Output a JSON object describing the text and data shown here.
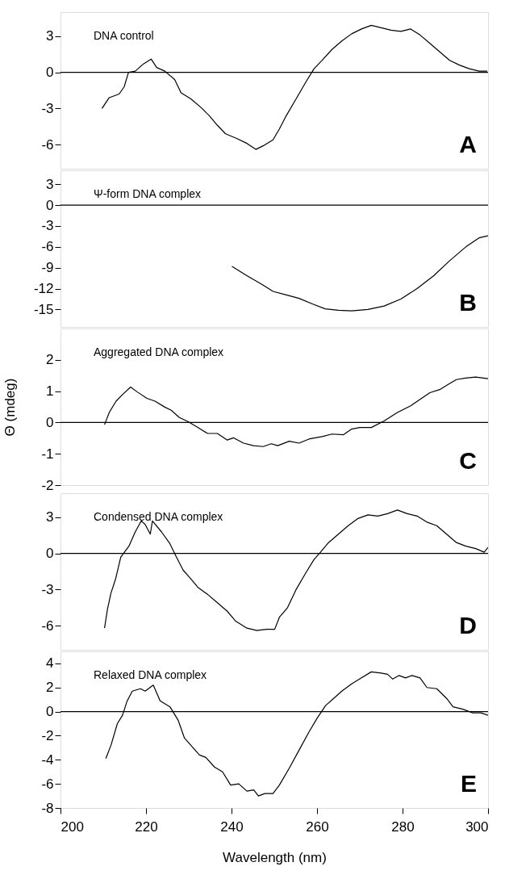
{
  "chart_data": [
    {
      "type": "line",
      "x": [
        209.7,
        211.4,
        213.7,
        214.9,
        215.9,
        217.5,
        219.4,
        221.2,
        222.5,
        224.4,
        226.7,
        228.2,
        230.5,
        232.8,
        234.8,
        236.7,
        238.6,
        241.3,
        243.6,
        245.7,
        247.4,
        249.7,
        251.2,
        252.8,
        255.1,
        257.4,
        259.3,
        261.2,
        263.5,
        265.8,
        268.1,
        270.4,
        272.7,
        275.0,
        277.3,
        279.6,
        281.9,
        284.1,
        286.4,
        288.7,
        291.0,
        293.3,
        295.6,
        297.9,
        299.8
      ],
      "series": [
        {
          "color": "#000000",
          "values": [
            -3.0,
            -2.1,
            -1.8,
            -1.2,
            0.0,
            0.1,
            0.7,
            1.1,
            0.4,
            0.1,
            -0.6,
            -1.7,
            -2.2,
            -2.9,
            -3.6,
            -4.4,
            -5.1,
            -5.5,
            -5.9,
            -6.4,
            -6.1,
            -5.6,
            -4.7,
            -3.6,
            -2.2,
            -0.8,
            0.3,
            1.0,
            1.9,
            2.6,
            3.2,
            3.6,
            3.9,
            3.7,
            3.5,
            3.4,
            3.6,
            3.1,
            2.4,
            1.7,
            1.0,
            0.6,
            0.3,
            0.1,
            0.1
          ]
        }
      ],
      "xlim": [
        200,
        300
      ],
      "xticks": [
        200,
        220,
        240,
        260,
        280,
        300
      ],
      "ylim": [
        -8,
        5
      ],
      "yticks": [
        3,
        0,
        -3,
        -6
      ],
      "ref_lines": [
        {
          "axis": "y",
          "value": 0
        }
      ],
      "annotations": [
        "DNA control",
        "A"
      ],
      "tick_labels": "y"
    },
    {
      "type": "line",
      "x": [
        240.1,
        243.5,
        247.4,
        249.7,
        252.8,
        255.8,
        258.9,
        261.9,
        265.0,
        268.1,
        271.9,
        275.7,
        279.6,
        283.4,
        287.2,
        291.0,
        294.8,
        297.9,
        300.0
      ],
      "series": [
        {
          "color": "#000000",
          "values": [
            -8.8,
            -10.1,
            -11.5,
            -12.4,
            -12.9,
            -13.4,
            -14.2,
            -14.9,
            -15.1,
            -15.2,
            -15.0,
            -14.5,
            -13.5,
            -12.0,
            -10.2,
            -8.0,
            -6.0,
            -4.7,
            -4.4
          ]
        }
      ],
      "xlim": [
        200,
        300
      ],
      "xticks": [
        200,
        220,
        240,
        260,
        280,
        300
      ],
      "ylim": [
        -17.5,
        5
      ],
      "yticks": [
        3,
        0,
        -3,
        -6,
        -9,
        -12,
        -15
      ],
      "ref_lines": [
        {
          "axis": "y",
          "value": 0
        }
      ],
      "annotations": [
        "Ψ-form DNA complex",
        "B"
      ],
      "tick_labels": "y"
    },
    {
      "type": "line",
      "x": [
        210.3,
        211.4,
        213.0,
        214.5,
        216.4,
        217.9,
        220.2,
        222.1,
        224.4,
        225.9,
        227.8,
        229.8,
        232.1,
        234.4,
        236.7,
        239.0,
        240.5,
        242.8,
        245.1,
        247.4,
        249.3,
        250.8,
        253.5,
        255.8,
        258.1,
        261.2,
        263.5,
        266.2,
        268.1,
        270.0,
        272.7,
        275.7,
        278.8,
        281.9,
        284.1,
        286.4,
        288.7,
        290.6,
        292.6,
        294.8,
        297.1,
        300.0
      ],
      "series": [
        {
          "color": "#000000",
          "values": [
            -0.07,
            0.32,
            0.68,
            0.89,
            1.13,
            0.98,
            0.77,
            0.68,
            0.49,
            0.39,
            0.16,
            0.03,
            -0.16,
            -0.35,
            -0.35,
            -0.56,
            -0.49,
            -0.66,
            -0.74,
            -0.77,
            -0.68,
            -0.74,
            -0.6,
            -0.66,
            -0.53,
            -0.45,
            -0.37,
            -0.39,
            -0.21,
            -0.16,
            -0.16,
            0.05,
            0.32,
            0.53,
            0.74,
            0.95,
            1.05,
            1.21,
            1.37,
            1.42,
            1.45,
            1.4
          ]
        }
      ],
      "xlim": [
        200,
        300
      ],
      "xticks": [
        200,
        220,
        240,
        260,
        280,
        300
      ],
      "ylim": [
        -2,
        3
      ],
      "yticks": [
        2,
        1,
        0,
        -1,
        -2
      ],
      "ylabel": "Θ (mdeg)",
      "ref_lines": [
        {
          "axis": "y",
          "value": 0
        }
      ],
      "annotations": [
        "Aggregated DNA complex",
        "C"
      ],
      "tick_labels": "y"
    },
    {
      "type": "line",
      "x": [
        210.3,
        211.0,
        211.8,
        212.9,
        214.1,
        216.0,
        217.5,
        218.9,
        219.8,
        221.0,
        221.5,
        223.6,
        225.6,
        227.1,
        228.7,
        230.2,
        232.1,
        234.4,
        236.7,
        239.0,
        240.9,
        243.6,
        245.9,
        248.2,
        250.1,
        251.2,
        253.1,
        255.1,
        257.4,
        259.3,
        260.8,
        262.7,
        265.0,
        267.3,
        269.6,
        271.9,
        274.2,
        276.5,
        278.8,
        281.1,
        283.4,
        285.7,
        288.0,
        290.3,
        292.6,
        294.8,
        297.1,
        299.1,
        300.0
      ],
      "series": [
        {
          "color": "#000000",
          "values": [
            -6.2,
            -4.6,
            -3.3,
            -2.1,
            -0.3,
            0.6,
            1.8,
            2.7,
            2.4,
            1.6,
            2.7,
            1.8,
            0.8,
            -0.3,
            -1.4,
            -2.0,
            -2.8,
            -3.4,
            -4.1,
            -4.8,
            -5.6,
            -6.2,
            -6.4,
            -6.3,
            -6.3,
            -5.3,
            -4.5,
            -3.0,
            -1.6,
            -0.5,
            0.1,
            0.9,
            1.6,
            2.3,
            2.9,
            3.2,
            3.1,
            3.3,
            3.6,
            3.3,
            3.1,
            2.6,
            2.3,
            1.6,
            0.9,
            0.6,
            0.4,
            0.1,
            0.5
          ]
        }
      ],
      "xlim": [
        200,
        300
      ],
      "xticks": [
        200,
        220,
        240,
        260,
        280,
        300
      ],
      "ylim": [
        -8,
        5
      ],
      "yticks": [
        3,
        0,
        -3,
        -6
      ],
      "ref_lines": [
        {
          "axis": "y",
          "value": 0
        }
      ],
      "annotations": [
        "Condensed DNA complex",
        "D"
      ],
      "tick_labels": "y"
    },
    {
      "type": "line",
      "x": [
        210.6,
        211.8,
        213.3,
        214.5,
        215.6,
        216.8,
        218.7,
        219.8,
        221.7,
        223.3,
        225.6,
        227.5,
        229.0,
        231.0,
        232.5,
        234.0,
        236.0,
        237.9,
        239.8,
        241.7,
        243.6,
        245.2,
        246.3,
        247.8,
        249.7,
        251.2,
        253.5,
        255.8,
        258.1,
        260.1,
        262.0,
        263.9,
        265.8,
        268.1,
        270.4,
        272.7,
        275.0,
        276.5,
        277.7,
        279.2,
        280.7,
        282.2,
        284.1,
        285.7,
        288.0,
        290.3,
        291.8,
        294.1,
        296.4,
        298.3,
        300.0
      ],
      "series": [
        {
          "color": "#000000",
          "values": [
            -3.9,
            -2.8,
            -1.0,
            -0.3,
            0.9,
            1.7,
            1.9,
            1.7,
            2.2,
            0.9,
            0.4,
            -0.7,
            -2.2,
            -3.0,
            -3.6,
            -3.8,
            -4.6,
            -5.0,
            -6.1,
            -6.0,
            -6.6,
            -6.5,
            -7.0,
            -6.8,
            -6.8,
            -6.1,
            -4.7,
            -3.2,
            -1.7,
            -0.5,
            0.5,
            1.1,
            1.7,
            2.3,
            2.8,
            3.3,
            3.2,
            3.1,
            2.7,
            3.0,
            2.8,
            3.0,
            2.8,
            2.0,
            1.9,
            1.1,
            0.4,
            0.2,
            -0.1,
            -0.1,
            -0.3
          ]
        }
      ],
      "xlim": [
        200,
        300
      ],
      "xticks": [
        200,
        220,
        240,
        260,
        280,
        300
      ],
      "ylim": [
        -8,
        5
      ],
      "yticks": [
        4,
        2,
        0,
        -2,
        -4,
        -6,
        -8
      ],
      "xlabel": "Wavelength (nm)",
      "ref_lines": [
        {
          "axis": "y",
          "value": 0
        }
      ],
      "annotations": [
        "Relaxed DNA complex",
        "E"
      ]
    }
  ]
}
